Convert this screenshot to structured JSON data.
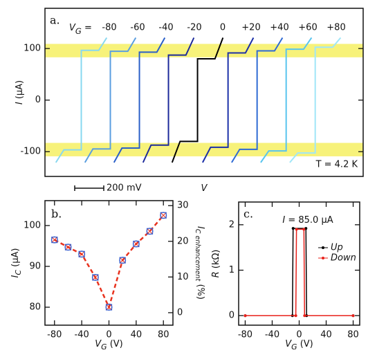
{
  "chart_data": [
    {
      "type": "line",
      "panel_label": "a.",
      "x_label": {
        "main": "V"
      },
      "y_label": {
        "main": "I",
        "unit": " (μA)"
      },
      "legend": "top",
      "legend_title": {
        "main": "V",
        "sub": "G",
        "unit": " ="
      },
      "annotation": "T = 4.2 K",
      "scale_bar": {
        "value": 200,
        "label": "200 mV"
      },
      "xlim": [
        0,
        2190
      ],
      "ylim": [
        -148,
        178
      ],
      "yticks": [
        -100,
        0,
        100
      ],
      "bands": [
        [
          83,
          109
        ],
        [
          -109,
          -83
        ]
      ],
      "band_color": "#f7f27a",
      "series": [
        {
          "name": "-80",
          "color": "#88d8f0",
          "x": [
            75,
            130,
            250,
            250,
            370,
            425
          ],
          "values": [
            -121,
            -96.5,
            -96.5,
            96.5,
            96.5,
            121
          ]
        },
        {
          "name": "-60",
          "color": "#5a9ee0",
          "x": [
            275,
            330,
            450,
            450,
            570,
            625
          ],
          "values": [
            -121,
            -94.7,
            -94.7,
            94.7,
            94.7,
            121
          ]
        },
        {
          "name": "-40",
          "color": "#2a5fc8",
          "x": [
            475,
            530,
            650,
            650,
            770,
            825
          ],
          "values": [
            -121,
            -93,
            -93,
            93,
            93,
            121
          ]
        },
        {
          "name": "-20",
          "color": "#1c2a9a",
          "x": [
            675,
            730,
            850,
            850,
            970,
            1025
          ],
          "values": [
            -121,
            -87.3,
            -87.3,
            87.3,
            87.3,
            121
          ]
        },
        {
          "name": "0",
          "color": "#000000",
          "x": [
            875,
            930,
            1050,
            1050,
            1170,
            1225
          ],
          "values": [
            -121,
            -80,
            -80,
            80,
            80,
            121
          ]
        },
        {
          "name": "+20",
          "color": "#1c30a8",
          "x": [
            1085,
            1140,
            1260,
            1260,
            1380,
            1435
          ],
          "values": [
            -121,
            -91.5,
            -91.5,
            91.5,
            91.5,
            121
          ]
        },
        {
          "name": "+40",
          "color": "#2e6ad4",
          "x": [
            1285,
            1340,
            1460,
            1460,
            1580,
            1635
          ],
          "values": [
            -121,
            -95.5,
            -95.5,
            95.5,
            95.5,
            121
          ]
        },
        {
          "name": "+60",
          "color": "#58c4ee",
          "x": [
            1485,
            1540,
            1660,
            1660,
            1780,
            1835
          ],
          "values": [
            -121,
            -98.6,
            -98.6,
            98.6,
            98.6,
            121
          ]
        },
        {
          "name": "+80",
          "color": "#a0e6f8",
          "x": [
            1685,
            1740,
            1860,
            1860,
            1980,
            2035
          ],
          "values": [
            -121,
            -102.5,
            -102.5,
            102.5,
            102.5,
            121
          ]
        }
      ]
    },
    {
      "type": "scatter",
      "panel_label": "b.",
      "x_label": {
        "main": "V",
        "sub": "G",
        "unit": " (V)"
      },
      "y_label": {
        "main": "I",
        "sub": "C",
        "unit": " (μA)"
      },
      "y2_label": {
        "main": "I",
        "sub": "C enhancement",
        "unit": " (%)"
      },
      "x": [
        -80,
        -60,
        -40,
        -20,
        0,
        20,
        40,
        60,
        80
      ],
      "values": [
        96.5,
        94.7,
        93.0,
        87.3,
        80.0,
        91.5,
        95.5,
        98.6,
        102.5
      ],
      "color": "#3a5fcd",
      "fit_color": "#e8321e",
      "xlim": [
        -94,
        94
      ],
      "xticks": [
        -80,
        -40,
        0,
        40,
        80
      ],
      "ylim": [
        75.6,
        106.1
      ],
      "yticks": [
        80,
        90,
        100
      ],
      "y2lim": [
        -3.5,
        31.4
      ],
      "y2ticks": [
        0,
        10,
        20,
        30
      ]
    },
    {
      "type": "line",
      "panel_label": "c.",
      "x_label": {
        "main": "V",
        "sub": "G",
        "unit": " (V)"
      },
      "y_label": {
        "main": "R",
        "unit": " (kΩ)"
      },
      "annotation": {
        "main": "I",
        "unit": " = 85.0 μA"
      },
      "legend": "right",
      "markers": true,
      "xlim": [
        -89.7,
        89.7
      ],
      "xticks": [
        -80,
        -40,
        0,
        40,
        80
      ],
      "ylim": [
        -0.21,
        2.5
      ],
      "yticks": [
        0,
        1,
        2
      ],
      "series": [
        {
          "name": "Up",
          "color": "#000000",
          "x": [
            -80,
            -10,
            -9,
            10,
            11,
            80
          ],
          "values": [
            0,
            0,
            1.92,
            1.92,
            0,
            0
          ]
        },
        {
          "name": "Down",
          "color": "#e8201a",
          "x": [
            80,
            8,
            7,
            -4,
            -5,
            -80
          ],
          "values": [
            0,
            0,
            1.9,
            1.9,
            0,
            0
          ]
        }
      ]
    }
  ]
}
